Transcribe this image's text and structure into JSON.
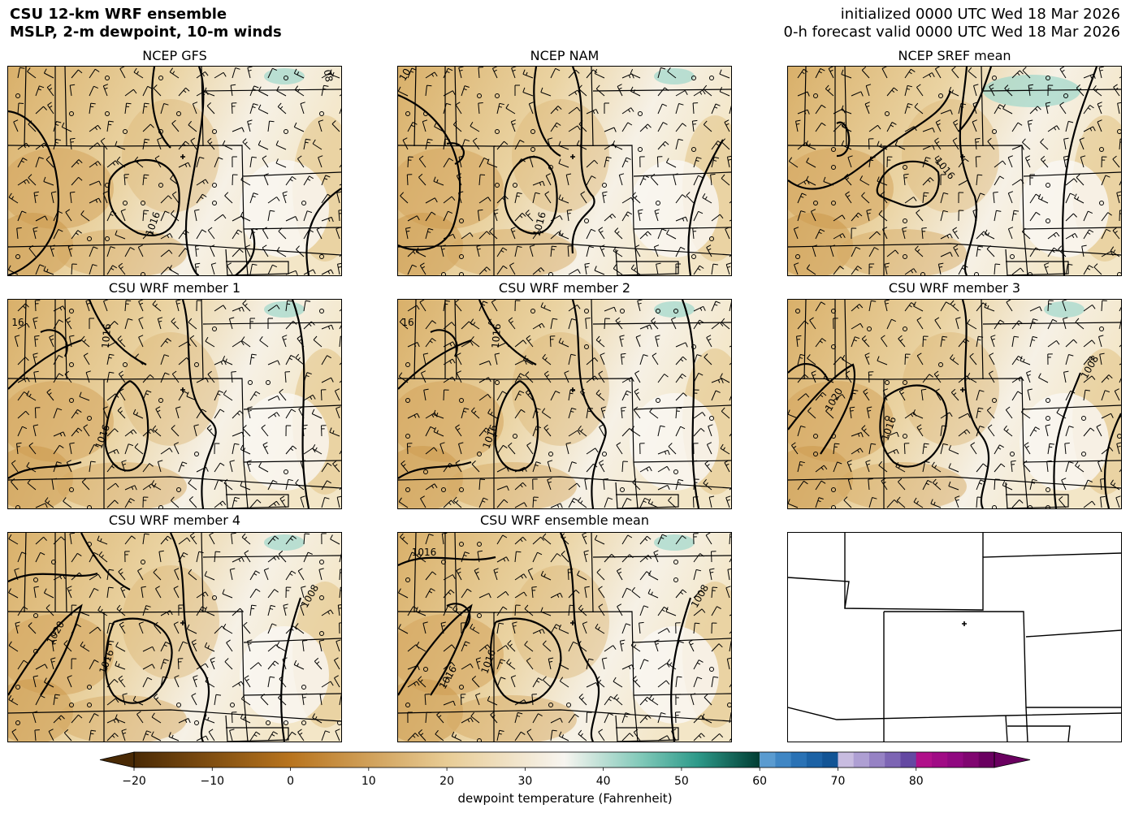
{
  "header": {
    "title_line1": "CSU 12-km WRF ensemble",
    "title_line2": "MSLP, 2-m dewpoint, 10-m winds",
    "init_line": "initialized 0000 UTC Wed 18 Mar 2026",
    "valid_line": "0-h forecast valid 0000 UTC Wed 18 Mar 2026"
  },
  "panels": [
    {
      "title": "NCEP GFS",
      "contour_labels": [
        "1016",
        "08"
      ],
      "shaded": true
    },
    {
      "title": "NCEP NAM",
      "contour_labels": [
        "1016",
        "10"
      ],
      "shaded": true
    },
    {
      "title": "NCEP SREF mean",
      "contour_labels": [
        "1016"
      ],
      "shaded": true
    },
    {
      "title": "CSU WRF member 1",
      "contour_labels": [
        "1016",
        "1016",
        "16"
      ],
      "shaded": true
    },
    {
      "title": "CSU WRF member 2",
      "contour_labels": [
        "1016",
        "1016",
        "16"
      ],
      "shaded": true
    },
    {
      "title": "CSU WRF member 3",
      "contour_labels": [
        "1020",
        "1016",
        "1008"
      ],
      "shaded": true
    },
    {
      "title": "CSU WRF member 4",
      "contour_labels": [
        "1020",
        "1016",
        "1008"
      ],
      "shaded": true
    },
    {
      "title": "CSU WRF ensemble mean",
      "contour_labels": [
        "1016",
        "1016",
        "1016",
        "1008"
      ],
      "shaded": true
    },
    {
      "title": "",
      "contour_labels": [],
      "shaded": false
    }
  ],
  "colorbar": {
    "label": "dewpoint temperature (Fahrenheit)",
    "ticks": [
      "−20",
      "−10",
      "0",
      "10",
      "20",
      "30",
      "40",
      "50",
      "60",
      "70",
      "80"
    ],
    "tick_values": [
      -20,
      -10,
      0,
      10,
      20,
      30,
      40,
      50,
      60,
      70,
      80
    ],
    "range": [
      -25,
      90
    ],
    "colors": {
      "brown_dark": "#4a2a05",
      "brown": "#b8741e",
      "tan": "#e8cc95",
      "white": "#f7f5f0",
      "teal": "#2e9a8a",
      "dark_teal": "#003d33",
      "blue": "#1f6fb5",
      "lavender": "#b8a8d8",
      "purple": "#5a2e8a",
      "magenta": "#b0108a",
      "dark_magenta": "#6a0060"
    }
  }
}
